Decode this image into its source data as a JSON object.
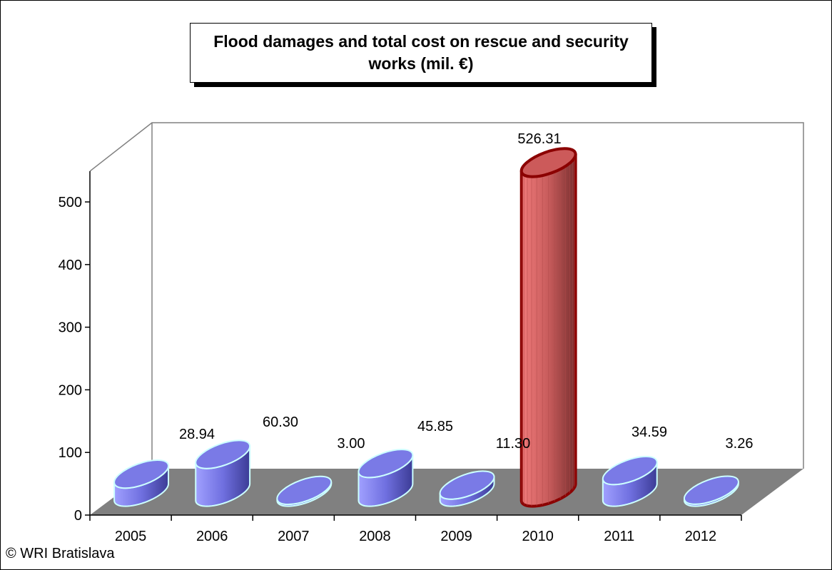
{
  "chart_data": {
    "type": "bar",
    "title": "Flood damages and total cost on rescue and security works (mil. €)",
    "categories": [
      "2005",
      "2006",
      "2007",
      "2008",
      "2009",
      "2010",
      "2011",
      "2012"
    ],
    "values": [
      28.94,
      60.3,
      3.0,
      45.85,
      11.3,
      526.31,
      34.59,
      3.26
    ],
    "value_labels": [
      "28.94",
      "60.30",
      "3.00",
      "45.85",
      "11.30",
      "526.31",
      "34.59",
      "3.26"
    ],
    "highlight_category": "2010",
    "y_ticks": [
      "0",
      "100",
      "200",
      "300",
      "400",
      "500"
    ],
    "ylim": [
      0,
      500
    ],
    "xlabel": "",
    "ylabel": "",
    "grid": false,
    "legend": "none",
    "colors": {
      "bar_fill": "#8080ff",
      "bar_outline": "#ccffff",
      "highlight_fill": "#e06666",
      "highlight_outline": "#8b0000",
      "floor": "#808080"
    }
  },
  "footer": {
    "credit": "© WRI Bratislava"
  }
}
